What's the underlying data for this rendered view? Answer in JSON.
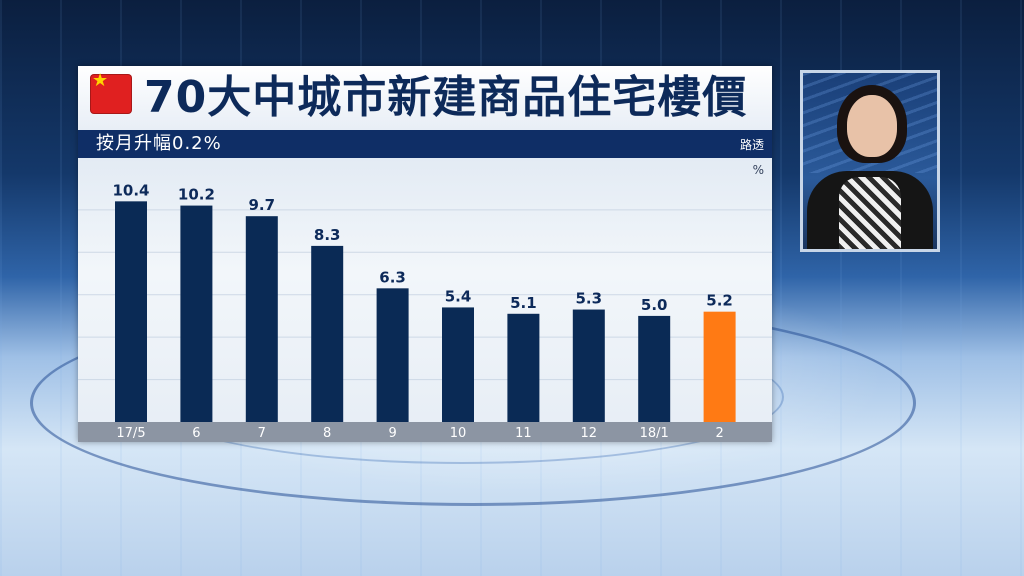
{
  "title": "70大中城市新建商品住宅樓價",
  "subtitle": "按月升幅0.2%",
  "source": "路透",
  "colors": {
    "bar": "#0a2a55",
    "highlight_bar": "#ff7a14",
    "title_text": "#0d2a5a",
    "sub_bar": "#0f2e66"
  },
  "icons": {
    "flag": "china-flag-icon"
  },
  "chart_data": {
    "type": "bar",
    "categories": [
      "17/5",
      "6",
      "7",
      "8",
      "9",
      "10",
      "11",
      "12",
      "18/1",
      "2"
    ],
    "values": [
      10.4,
      10.2,
      9.7,
      8.3,
      6.3,
      5.4,
      5.1,
      5.3,
      5.0,
      5.2
    ],
    "value_labels": [
      "10.4",
      "10.2",
      "9.7",
      "8.3",
      "6.3",
      "5.4",
      "5.1",
      "5.3",
      "5.0",
      "5.2"
    ],
    "highlight_index": 9,
    "unit": "%",
    "ylim": [
      0,
      11.5
    ],
    "grid": true,
    "legend": "none"
  }
}
